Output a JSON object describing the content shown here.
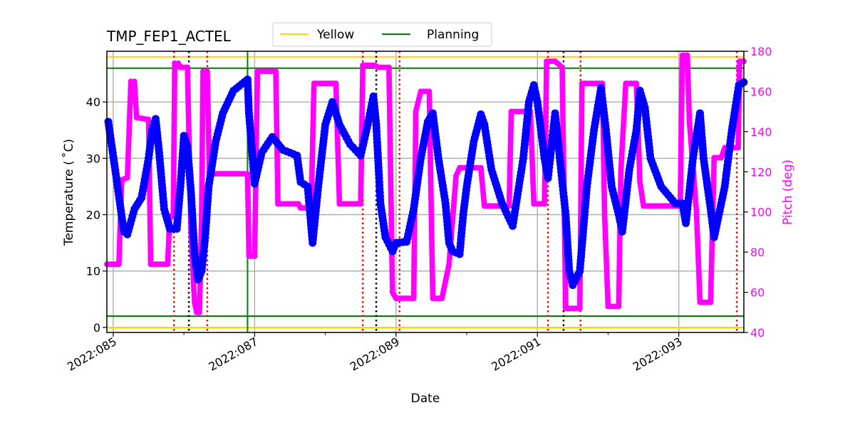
{
  "chart_data": {
    "type": "line",
    "title": "TMP_FEP1_ACTEL",
    "xlabel": "Date",
    "ylabel": "Temperature ($^\\circ$C)",
    "ylabel_display": "Temperature ( ˚C)",
    "y2label": "Pitch (deg)",
    "x_units": "day of year 2022",
    "xlim": [
      84.91,
      93.92
    ],
    "ylim": [
      -0.9,
      49.0
    ],
    "y2lim": [
      40,
      180
    ],
    "x_ticks": [
      85,
      87,
      89,
      91,
      93
    ],
    "x_minor_ticks": [
      86,
      88,
      90,
      92
    ],
    "x_tick_labels": [
      "2022:085",
      "2022:087",
      "2022:089",
      "2022:091",
      "2022:093"
    ],
    "y_ticks": [
      0,
      10,
      20,
      30,
      40
    ],
    "y2_ticks": [
      40,
      60,
      80,
      100,
      120,
      140,
      160,
      180
    ],
    "grid": true,
    "legend": {
      "placement": "top-center",
      "entries": [
        "Yellow",
        "Planning"
      ]
    },
    "colors": {
      "temperature": "#0000ff",
      "pitch": "#ff00ff",
      "yellow": "#ffd700",
      "planning": "#008000",
      "red_marker": "#ff0000",
      "black_marker": "#000000",
      "y2_axis": "#ff00ff"
    },
    "limits": {
      "yellow": [
        0,
        48
      ],
      "planning": [
        2,
        46
      ]
    },
    "vertical_lines": {
      "planning": [
        86.9
      ],
      "red_dotted": [
        85.86,
        86.33,
        88.53,
        89.05,
        91.15,
        91.61,
        93.82
      ],
      "black_dotted": [
        86.07,
        88.72,
        91.37
      ]
    },
    "series": [
      {
        "axis": "left",
        "points": [
          [
            84.93,
            36.5
          ],
          [
            85.05,
            26
          ],
          [
            85.15,
            17
          ],
          [
            85.2,
            16.5
          ],
          [
            85.3,
            21
          ],
          [
            85.4,
            23
          ],
          [
            85.5,
            30
          ],
          [
            85.55,
            35
          ],
          [
            85.6,
            37
          ],
          [
            85.65,
            31
          ],
          [
            85.72,
            21
          ],
          [
            85.8,
            17.5
          ],
          [
            85.9,
            17.5
          ],
          [
            85.95,
            25
          ],
          [
            86.0,
            34
          ],
          [
            86.05,
            32
          ],
          [
            86.1,
            24
          ],
          [
            86.15,
            13
          ],
          [
            86.2,
            8.5
          ],
          [
            86.25,
            10
          ],
          [
            86.3,
            16
          ],
          [
            86.35,
            25
          ],
          [
            86.45,
            33
          ],
          [
            86.55,
            38
          ],
          [
            86.7,
            42
          ],
          [
            86.9,
            44
          ],
          [
            86.92,
            38
          ],
          [
            87.0,
            25.5
          ],
          [
            87.1,
            31
          ],
          [
            87.25,
            33.8
          ],
          [
            87.4,
            31.5
          ],
          [
            87.6,
            30.5
          ],
          [
            87.65,
            25.8
          ],
          [
            87.75,
            25
          ],
          [
            87.82,
            15
          ],
          [
            87.9,
            25
          ],
          [
            88.0,
            36
          ],
          [
            88.1,
            40
          ],
          [
            88.2,
            36
          ],
          [
            88.35,
            32.5
          ],
          [
            88.5,
            30.5
          ],
          [
            88.6,
            36
          ],
          [
            88.68,
            41
          ],
          [
            88.72,
            36
          ],
          [
            88.78,
            22
          ],
          [
            88.85,
            16
          ],
          [
            88.95,
            13.5
          ],
          [
            89.0,
            15
          ],
          [
            89.15,
            15.2
          ],
          [
            89.25,
            21
          ],
          [
            89.35,
            30
          ],
          [
            89.45,
            36.5
          ],
          [
            89.52,
            38
          ],
          [
            89.6,
            30
          ],
          [
            89.7,
            22
          ],
          [
            89.75,
            15
          ],
          [
            89.8,
            13.5
          ],
          [
            89.9,
            13
          ],
          [
            89.95,
            20
          ],
          [
            90.0,
            25
          ],
          [
            90.1,
            33
          ],
          [
            90.2,
            37.8
          ],
          [
            90.25,
            36
          ],
          [
            90.35,
            28
          ],
          [
            90.5,
            22
          ],
          [
            90.65,
            18
          ],
          [
            90.8,
            30
          ],
          [
            90.88,
            40
          ],
          [
            90.95,
            43
          ],
          [
            91.0,
            40
          ],
          [
            91.1,
            30
          ],
          [
            91.15,
            26.5
          ],
          [
            91.25,
            38
          ],
          [
            91.3,
            32
          ],
          [
            91.4,
            20
          ],
          [
            91.45,
            10
          ],
          [
            91.5,
            7.5
          ],
          [
            91.6,
            10
          ],
          [
            91.7,
            25
          ],
          [
            91.8,
            35
          ],
          [
            91.9,
            42.5
          ],
          [
            91.97,
            35
          ],
          [
            92.05,
            25
          ],
          [
            92.15,
            20
          ],
          [
            92.2,
            17
          ],
          [
            92.3,
            28
          ],
          [
            92.4,
            35
          ],
          [
            92.45,
            42
          ],
          [
            92.52,
            39
          ],
          [
            92.6,
            30
          ],
          [
            92.75,
            25
          ],
          [
            92.95,
            22
          ],
          [
            93.05,
            22
          ],
          [
            93.1,
            18.5
          ],
          [
            93.2,
            30
          ],
          [
            93.3,
            38
          ],
          [
            93.35,
            30
          ],
          [
            93.45,
            21
          ],
          [
            93.5,
            16
          ],
          [
            93.65,
            25
          ],
          [
            93.75,
            35
          ],
          [
            93.85,
            43
          ],
          [
            93.92,
            43.5
          ]
        ]
      },
      {
        "axis": "right",
        "points": [
          [
            84.91,
            74
          ],
          [
            85.08,
            74
          ],
          [
            85.12,
            116
          ],
          [
            85.2,
            117
          ],
          [
            85.25,
            165
          ],
          [
            85.3,
            165
          ],
          [
            85.33,
            147
          ],
          [
            85.5,
            146
          ],
          [
            85.53,
            74
          ],
          [
            85.77,
            74
          ],
          [
            85.8,
            98
          ],
          [
            85.85,
            98
          ],
          [
            85.87,
            174
          ],
          [
            85.92,
            174
          ],
          [
            85.95,
            172
          ],
          [
            86.05,
            172
          ],
          [
            86.1,
            90
          ],
          [
            86.15,
            55
          ],
          [
            86.18,
            50
          ],
          [
            86.22,
            50
          ],
          [
            86.25,
            98
          ],
          [
            86.27,
            170
          ],
          [
            86.33,
            170
          ],
          [
            86.36,
            119
          ],
          [
            86.9,
            119
          ],
          [
            86.92,
            78
          ],
          [
            87.0,
            78
          ],
          [
            87.04,
            170
          ],
          [
            87.3,
            170
          ],
          [
            87.33,
            104
          ],
          [
            87.62,
            104
          ],
          [
            87.65,
            102
          ],
          [
            87.8,
            102
          ],
          [
            87.84,
            164
          ],
          [
            88.15,
            164
          ],
          [
            88.2,
            104
          ],
          [
            88.5,
            104
          ],
          [
            88.53,
            173
          ],
          [
            88.7,
            173
          ],
          [
            88.75,
            172
          ],
          [
            88.9,
            172
          ],
          [
            88.95,
            60
          ],
          [
            89.0,
            57
          ],
          [
            89.25,
            57
          ],
          [
            89.28,
            150
          ],
          [
            89.35,
            160
          ],
          [
            89.47,
            160
          ],
          [
            89.52,
            57
          ],
          [
            89.65,
            57
          ],
          [
            89.75,
            74
          ],
          [
            89.85,
            118
          ],
          [
            89.9,
            122
          ],
          [
            90.2,
            122
          ],
          [
            90.25,
            103
          ],
          [
            90.6,
            103
          ],
          [
            90.63,
            150
          ],
          [
            90.9,
            150
          ],
          [
            90.95,
            104
          ],
          [
            91.1,
            104
          ],
          [
            91.13,
            175
          ],
          [
            91.25,
            175
          ],
          [
            91.35,
            172
          ],
          [
            91.4,
            52
          ],
          [
            91.6,
            52
          ],
          [
            91.63,
            164
          ],
          [
            91.92,
            164
          ],
          [
            91.95,
            99
          ],
          [
            92.0,
            53
          ],
          [
            92.15,
            53
          ],
          [
            92.18,
            120
          ],
          [
            92.25,
            164
          ],
          [
            92.4,
            164
          ],
          [
            92.45,
            115
          ],
          [
            92.5,
            103
          ],
          [
            92.95,
            103
          ],
          [
            93.02,
            103
          ],
          [
            93.05,
            178
          ],
          [
            93.12,
            178
          ],
          [
            93.15,
            145
          ],
          [
            93.25,
            100
          ],
          [
            93.3,
            55
          ],
          [
            93.45,
            55
          ],
          [
            93.5,
            127
          ],
          [
            93.6,
            127
          ],
          [
            93.65,
            132
          ],
          [
            93.84,
            132
          ],
          [
            93.86,
            175
          ],
          [
            93.92,
            175
          ]
        ]
      }
    ]
  }
}
